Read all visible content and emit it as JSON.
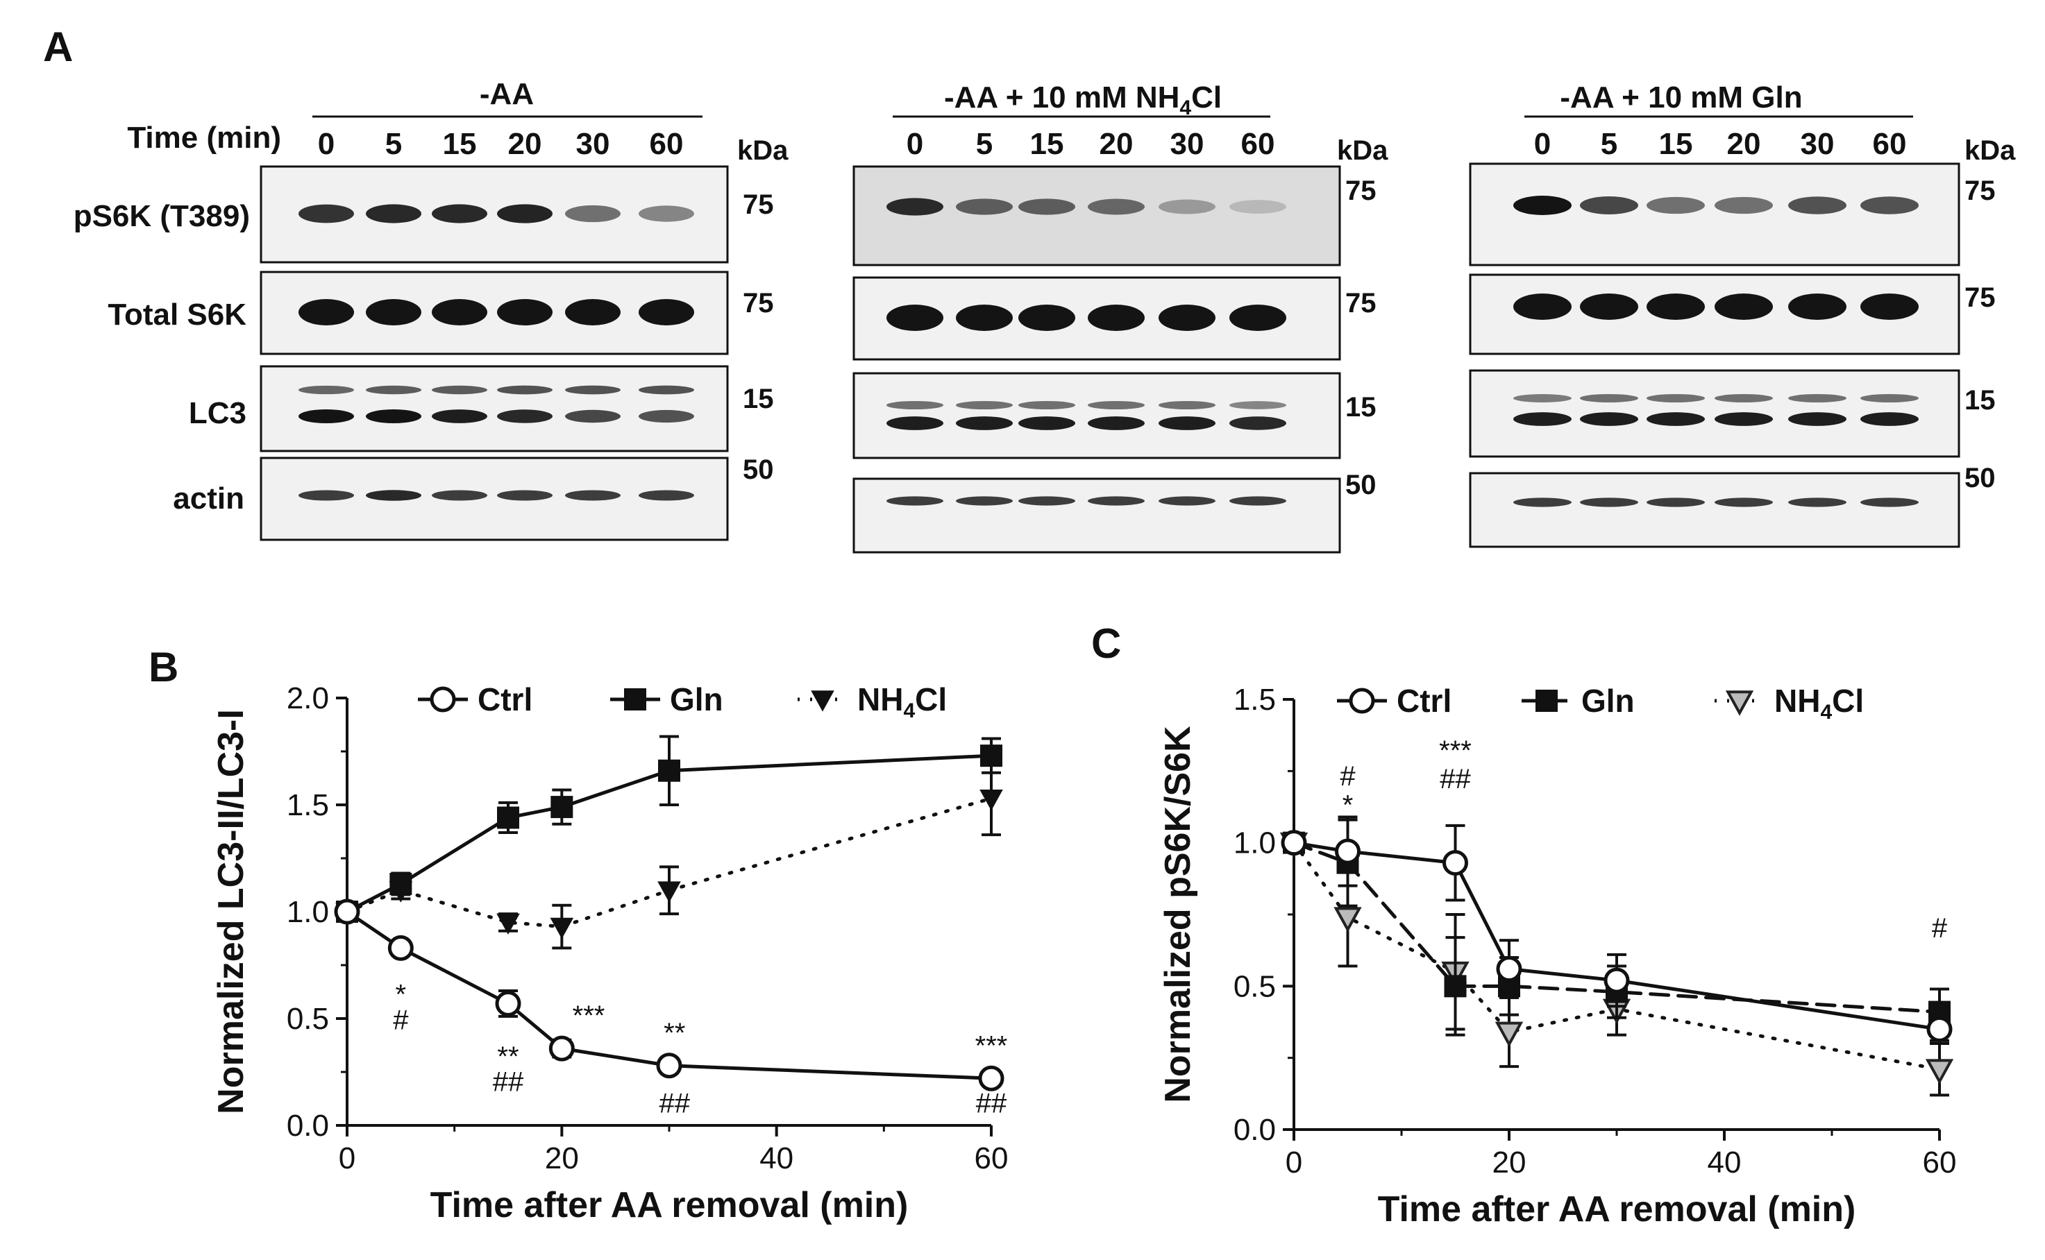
{
  "panel_labels": {
    "a": "A",
    "b": "B",
    "c": "C"
  },
  "blot": {
    "time_label": "Time (min)",
    "row_labels": [
      "pS6K (T389)",
      "Total S6K",
      "LC3",
      "actin"
    ],
    "kda_label": "kDa",
    "groups": [
      {
        "title_pre": "-AA",
        "title_sub": "",
        "title_post": "",
        "timepoints": [
          "0",
          "5",
          "15",
          "20",
          "30",
          "60"
        ],
        "markers": [
          "75",
          "75",
          "15",
          "50"
        ],
        "intensities": {
          "pS6K": [
            0.85,
            0.9,
            0.9,
            0.92,
            0.55,
            0.45
          ],
          "total": [
            1,
            1,
            1,
            1,
            1,
            1
          ],
          "lc3_upper": [
            0.6,
            0.65,
            0.65,
            0.7,
            0.7,
            0.7
          ],
          "lc3_lower": [
            1,
            1,
            0.95,
            0.9,
            0.75,
            0.7
          ],
          "actin": [
            0.8,
            0.9,
            0.8,
            0.8,
            0.8,
            0.8
          ]
        }
      },
      {
        "title_pre": "-AA + 10 mM NH",
        "title_sub": "4",
        "title_post": "Cl",
        "timepoints": [
          "0",
          "5",
          "15",
          "20",
          "30",
          "60"
        ],
        "markers": [
          "75",
          "75",
          "15",
          "50"
        ],
        "intensities": {
          "pS6K": [
            0.9,
            0.65,
            0.65,
            0.6,
            0.35,
            0.2
          ],
          "total": [
            1,
            1,
            1,
            1,
            1,
            1
          ],
          "lc3_upper": [
            0.55,
            0.55,
            0.55,
            0.55,
            0.55,
            0.45
          ],
          "lc3_lower": [
            0.95,
            0.95,
            0.95,
            0.95,
            0.95,
            0.9
          ],
          "actin": [
            0.8,
            0.8,
            0.8,
            0.8,
            0.8,
            0.8
          ]
        }
      },
      {
        "title_pre": "-AA + 10 mM Gln",
        "title_sub": "",
        "title_post": "",
        "timepoints": [
          "0",
          "5",
          "15",
          "20",
          "30",
          "60"
        ],
        "markers": [
          "75",
          "75",
          "15",
          "50"
        ],
        "intensities": {
          "pS6K": [
            1,
            0.75,
            0.55,
            0.55,
            0.7,
            0.7
          ],
          "total": [
            1,
            1,
            1,
            1,
            1,
            1
          ],
          "lc3_upper": [
            0.5,
            0.55,
            0.55,
            0.55,
            0.55,
            0.55
          ],
          "lc3_lower": [
            0.95,
            0.95,
            0.95,
            0.95,
            0.95,
            0.95
          ],
          "actin": [
            0.8,
            0.8,
            0.8,
            0.8,
            0.8,
            0.8
          ]
        }
      }
    ]
  },
  "chart_data": [
    {
      "type": "line",
      "id": "B",
      "xlabel": "Time after AA removal (min)",
      "ylabel": "Normalized LC3-II/LC3-I",
      "xlim": [
        0,
        60
      ],
      "ylim": [
        0,
        2.0
      ],
      "xticks": [
        "0",
        "20",
        "40",
        "60"
      ],
      "yticks": [
        "0.0",
        "0.5",
        "1.0",
        "1.5",
        "2.0"
      ],
      "xtick_values": [
        0,
        20,
        40,
        60
      ],
      "ytick_values": [
        0,
        0.5,
        1.0,
        1.5,
        2.0
      ],
      "legend": {
        "position": "top",
        "entries": [
          {
            "pre": "Ctrl",
            "sub": "",
            "post": ""
          },
          {
            "pre": "Gln",
            "sub": "",
            "post": ""
          },
          {
            "pre": "NH",
            "sub": "4",
            "post": "Cl"
          }
        ]
      },
      "series": [
        {
          "name": "Ctrl",
          "marker": "circle-open",
          "line": "solid",
          "x": [
            0,
            5,
            15,
            20,
            30,
            60
          ],
          "y": [
            1.0,
            0.83,
            0.57,
            0.36,
            0.28,
            0.22
          ],
          "err": [
            0,
            0.03,
            0.06,
            0.04,
            0.03,
            0.03
          ]
        },
        {
          "name": "Gln",
          "marker": "square-filled",
          "line": "solid",
          "x": [
            0,
            5,
            15,
            20,
            30,
            60
          ],
          "y": [
            1.0,
            1.13,
            1.44,
            1.49,
            1.66,
            1.73
          ],
          "err": [
            0,
            0.05,
            0.07,
            0.08,
            0.16,
            0.08
          ]
        },
        {
          "name": "NH4Cl",
          "marker": "triangle-down-filled",
          "line": "dotted",
          "x": [
            0,
            5,
            15,
            20,
            30,
            60
          ],
          "y": [
            1.0,
            1.1,
            0.95,
            0.93,
            1.1,
            1.53
          ],
          "err": [
            0,
            0.04,
            0.04,
            0.1,
            0.11,
            0.17
          ]
        }
      ],
      "annotations": [
        {
          "x": 5,
          "y": 0.57,
          "text": "*"
        },
        {
          "x": 5,
          "y": 0.45,
          "text": "#"
        },
        {
          "x": 15,
          "y": 0.28,
          "text": "**"
        },
        {
          "x": 15,
          "y": 0.16,
          "text": "##"
        },
        {
          "x": 22.5,
          "y": 0.47,
          "text": "***"
        },
        {
          "x": 30.5,
          "y": 0.39,
          "text": "**"
        },
        {
          "x": 30.5,
          "y": 0.06,
          "text": "##"
        },
        {
          "x": 60,
          "y": 0.33,
          "text": "***"
        },
        {
          "x": 60,
          "y": 0.06,
          "text": "##"
        }
      ]
    },
    {
      "type": "line",
      "id": "C",
      "xlabel": "Time after AA removal (min)",
      "ylabel": "Normalized pS6K/S6K",
      "xlim": [
        0,
        60
      ],
      "ylim": [
        0,
        1.5
      ],
      "xticks": [
        "0",
        "20",
        "40",
        "60"
      ],
      "yticks": [
        "0.0",
        "0.5",
        "1.0",
        "1.5"
      ],
      "xtick_values": [
        0,
        20,
        40,
        60
      ],
      "ytick_values": [
        0,
        0.5,
        1.0,
        1.5
      ],
      "legend": {
        "position": "top-left",
        "entries": [
          {
            "pre": "Ctrl",
            "sub": "",
            "post": ""
          },
          {
            "pre": "Gln",
            "sub": "",
            "post": ""
          },
          {
            "pre": "NH",
            "sub": "4",
            "post": "Cl"
          }
        ]
      },
      "series": [
        {
          "name": "Ctrl",
          "marker": "circle-open",
          "line": "solid",
          "x": [
            0,
            5,
            15,
            20,
            30,
            60
          ],
          "y": [
            1.0,
            0.97,
            0.93,
            0.56,
            0.52,
            0.35
          ],
          "err": [
            0,
            0.12,
            0.13,
            0.1,
            0.09,
            0.04
          ]
        },
        {
          "name": "Gln",
          "marker": "square-filled",
          "line": "dashed",
          "x": [
            0,
            5,
            15,
            20,
            30,
            60
          ],
          "y": [
            1.0,
            0.93,
            0.5,
            0.5,
            0.48,
            0.41
          ],
          "err": [
            0,
            0.15,
            0.17,
            0.1,
            0.09,
            0.08
          ]
        },
        {
          "name": "NH4Cl",
          "marker": "triangle-down-open",
          "line": "dotted",
          "x": [
            0,
            5,
            15,
            20,
            30,
            60
          ],
          "y": [
            1.0,
            0.74,
            0.55,
            0.34,
            0.42,
            0.21
          ],
          "err": [
            0,
            0.17,
            0.2,
            0.12,
            0.09,
            0.09
          ]
        }
      ],
      "annotations": [
        {
          "x": 5,
          "y": 1.2,
          "text": "#"
        },
        {
          "x": 5,
          "y": 1.1,
          "text": "*"
        },
        {
          "x": 15,
          "y": 1.29,
          "text": "***"
        },
        {
          "x": 15,
          "y": 1.19,
          "text": "##"
        },
        {
          "x": 60,
          "y": 0.67,
          "text": "#"
        }
      ]
    }
  ]
}
